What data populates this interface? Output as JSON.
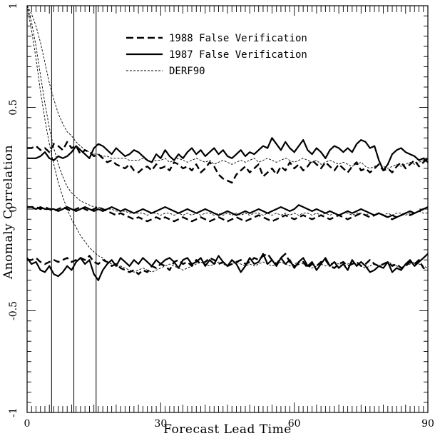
{
  "chart_data": {
    "type": "line",
    "title": "",
    "xlabel": "Forecast Lead Time",
    "ylabel": "Anomaly Correlation",
    "xlim": [
      0,
      90
    ],
    "ylim": [
      -1,
      1
    ],
    "xticks": [
      0,
      30,
      60,
      90
    ],
    "xtick_labels": [
      "0",
      "30",
      "60",
      "90"
    ],
    "yticks": [
      -1,
      -0.5,
      0,
      0.5,
      1
    ],
    "ytick_labels": [
      "-1",
      "-0.5",
      "0",
      "0.5",
      "1"
    ],
    "vertical_lines": [
      5.5,
      10.5,
      15.5
    ],
    "grid": false,
    "legend_position": "top-center",
    "legend": [
      {
        "label": "1988 False Verification",
        "style": "dashed-thick"
      },
      {
        "label": "1987 False Verification",
        "style": "solid-thick"
      },
      {
        "label": "DERF90",
        "style": "dashed-thin"
      }
    ],
    "x": [
      0,
      1,
      2,
      3,
      4,
      5,
      6,
      7,
      8,
      9,
      10,
      11,
      12,
      13,
      14,
      15,
      16,
      17,
      18,
      19,
      20,
      21,
      22,
      23,
      24,
      25,
      26,
      27,
      28,
      29,
      30,
      31,
      32,
      33,
      34,
      35,
      36,
      37,
      38,
      39,
      40,
      41,
      42,
      43,
      44,
      45,
      46,
      47,
      48,
      49,
      50,
      51,
      52,
      53,
      54,
      55,
      56,
      57,
      58,
      59,
      60,
      61,
      62,
      63,
      64,
      65,
      66,
      67,
      68,
      69,
      70,
      71,
      72,
      73,
      74,
      75,
      76,
      77,
      78,
      79,
      80,
      81,
      82,
      83,
      84,
      85,
      86,
      87,
      88,
      89,
      90
    ],
    "series": [
      {
        "name": "1988 False Verification",
        "group": "upper",
        "style": "dashed-thick",
        "values": [
          0.3,
          0.3,
          0.31,
          0.29,
          0.3,
          0.28,
          0.32,
          0.31,
          0.29,
          0.33,
          0.3,
          0.31,
          0.27,
          0.29,
          0.28,
          0.26,
          0.27,
          0.25,
          0.23,
          0.24,
          0.22,
          0.21,
          0.2,
          0.22,
          0.19,
          0.18,
          0.2,
          0.21,
          0.19,
          0.22,
          0.2,
          0.21,
          0.19,
          0.23,
          0.22,
          0.2,
          0.21,
          0.19,
          0.22,
          0.18,
          0.2,
          0.23,
          0.21,
          0.17,
          0.15,
          0.14,
          0.13,
          0.17,
          0.19,
          0.21,
          0.18,
          0.2,
          0.22,
          0.16,
          0.18,
          0.2,
          0.17,
          0.21,
          0.19,
          0.23,
          0.2,
          0.22,
          0.19,
          0.21,
          0.24,
          0.22,
          0.2,
          0.23,
          0.21,
          0.19,
          0.22,
          0.2,
          0.18,
          0.21,
          0.23,
          0.19,
          0.2,
          0.18,
          0.2,
          0.22,
          0.19,
          0.2,
          0.18,
          0.21,
          0.23,
          0.2,
          0.22,
          0.24,
          0.21,
          0.23,
          0.25
        ]
      },
      {
        "name": "1987 False Verification",
        "group": "upper",
        "style": "solid-thick",
        "values": [
          0.25,
          0.25,
          0.25,
          0.26,
          0.28,
          0.25,
          0.24,
          0.26,
          0.25,
          0.26,
          0.28,
          0.31,
          0.29,
          0.27,
          0.25,
          0.3,
          0.32,
          0.31,
          0.29,
          0.27,
          0.3,
          0.28,
          0.26,
          0.27,
          0.29,
          0.28,
          0.26,
          0.24,
          0.23,
          0.27,
          0.25,
          0.29,
          0.26,
          0.24,
          0.27,
          0.25,
          0.28,
          0.3,
          0.27,
          0.29,
          0.26,
          0.28,
          0.3,
          0.27,
          0.29,
          0.26,
          0.25,
          0.27,
          0.29,
          0.26,
          0.28,
          0.27,
          0.29,
          0.31,
          0.3,
          0.35,
          0.32,
          0.29,
          0.33,
          0.3,
          0.28,
          0.31,
          0.34,
          0.29,
          0.27,
          0.3,
          0.28,
          0.25,
          0.29,
          0.31,
          0.3,
          0.28,
          0.3,
          0.28,
          0.32,
          0.34,
          0.33,
          0.3,
          0.31,
          0.24,
          0.19,
          0.22,
          0.27,
          0.29,
          0.3,
          0.28,
          0.27,
          0.26,
          0.24,
          0.25,
          0.23
        ]
      },
      {
        "name": "DERF90",
        "group": "upper",
        "style": "dashed-thin",
        "values": [
          1.0,
          0.96,
          0.9,
          0.82,
          0.72,
          0.62,
          0.54,
          0.47,
          0.42,
          0.38,
          0.36,
          0.33,
          0.31,
          0.29,
          0.28,
          0.27,
          0.27,
          0.26,
          0.26,
          0.25,
          0.25,
          0.25,
          0.25,
          0.24,
          0.24,
          0.24,
          0.25,
          0.24,
          0.23,
          0.24,
          0.24,
          0.25,
          0.23,
          0.24,
          0.25,
          0.24,
          0.23,
          0.24,
          0.25,
          0.24,
          0.23,
          0.24,
          0.22,
          0.23,
          0.24,
          0.23,
          0.22,
          0.23,
          0.24,
          0.23,
          0.24,
          0.25,
          0.23,
          0.24,
          0.25,
          0.24,
          0.23,
          0.24,
          0.25,
          0.24,
          0.23,
          0.24,
          0.25,
          0.24,
          0.23,
          0.24,
          0.22,
          0.23,
          0.24,
          0.23,
          0.22,
          0.23,
          0.22,
          0.21,
          0.22,
          0.23,
          0.21,
          0.2,
          0.21,
          0.22,
          0.21,
          0.2,
          0.21,
          0.22,
          0.21,
          0.22,
          0.23,
          0.22,
          0.23,
          0.24,
          0.25
        ]
      },
      {
        "name": "1988 False Verification",
        "group": "middle",
        "style": "dashed-thick",
        "values": [
          0.01,
          0.01,
          0.01,
          0.0,
          0.01,
          0.0,
          -0.01,
          0.0,
          0.01,
          0.0,
          -0.01,
          0.0,
          0.01,
          0.0,
          -0.01,
          0.0,
          0.01,
          0.0,
          -0.01,
          -0.02,
          -0.03,
          -0.02,
          -0.03,
          -0.04,
          -0.05,
          -0.04,
          -0.05,
          -0.06,
          -0.05,
          -0.04,
          -0.05,
          -0.04,
          -0.05,
          -0.06,
          -0.05,
          -0.04,
          -0.05,
          -0.06,
          -0.05,
          -0.04,
          -0.05,
          -0.06,
          -0.05,
          -0.04,
          -0.05,
          -0.06,
          -0.05,
          -0.04,
          -0.05,
          -0.06,
          -0.05,
          -0.04,
          -0.03,
          -0.04,
          -0.05,
          -0.06,
          -0.05,
          -0.04,
          -0.03,
          -0.04,
          -0.05,
          -0.04,
          -0.03,
          -0.04,
          -0.05,
          -0.04,
          -0.03,
          -0.04,
          -0.05,
          -0.04,
          -0.03,
          -0.04,
          -0.05,
          -0.04,
          -0.03,
          -0.02,
          -0.03,
          -0.04,
          -0.03,
          -0.02,
          -0.03,
          -0.04,
          -0.05,
          -0.04,
          -0.03,
          -0.02,
          -0.03,
          -0.02,
          -0.01,
          0.0,
          0.0
        ]
      },
      {
        "name": "1987 False Verification",
        "group": "middle",
        "style": "solid-thick",
        "values": [
          0.01,
          0.01,
          0.0,
          0.01,
          0.0,
          0.0,
          0.0,
          -0.01,
          0.0,
          0.01,
          0.0,
          -0.01,
          0.0,
          0.01,
          0.0,
          -0.01,
          0.0,
          -0.01,
          0.0,
          0.01,
          0.0,
          -0.01,
          0.0,
          -0.01,
          -0.02,
          -0.01,
          0.0,
          -0.01,
          -0.02,
          -0.01,
          0.0,
          0.01,
          0.0,
          -0.01,
          -0.02,
          -0.01,
          0.0,
          -0.01,
          -0.02,
          -0.01,
          0.0,
          -0.01,
          -0.02,
          -0.03,
          -0.02,
          -0.01,
          -0.02,
          -0.03,
          -0.02,
          -0.01,
          -0.02,
          -0.01,
          0.0,
          -0.01,
          -0.02,
          -0.01,
          0.0,
          0.01,
          0.0,
          -0.01,
          0.0,
          0.02,
          0.01,
          0.0,
          -0.01,
          0.0,
          -0.01,
          -0.02,
          -0.01,
          -0.02,
          -0.03,
          -0.02,
          -0.01,
          -0.02,
          -0.01,
          0.0,
          -0.01,
          -0.02,
          -0.03,
          -0.02,
          -0.03,
          -0.04,
          -0.03,
          -0.04,
          -0.03,
          -0.02,
          -0.01,
          -0.02,
          -0.01,
          0.0,
          0.01
        ]
      },
      {
        "name": "DERF90",
        "group": "middle",
        "style": "dashed-thin",
        "values": [
          1.0,
          0.92,
          0.8,
          0.66,
          0.52,
          0.4,
          0.3,
          0.22,
          0.16,
          0.11,
          0.08,
          0.06,
          0.04,
          0.03,
          0.02,
          0.01,
          0.01,
          0.0,
          0.0,
          0.0,
          -0.01,
          -0.01,
          -0.01,
          -0.02,
          -0.02,
          -0.02,
          -0.02,
          -0.03,
          -0.02,
          -0.02,
          -0.03,
          -0.02,
          -0.02,
          -0.03,
          -0.02,
          -0.03,
          -0.02,
          -0.03,
          -0.02,
          -0.03,
          -0.02,
          -0.02,
          -0.03,
          -0.02,
          -0.03,
          -0.02,
          -0.03,
          -0.02,
          -0.03,
          -0.02,
          -0.03,
          -0.02,
          -0.02,
          -0.03,
          -0.02,
          -0.03,
          -0.02,
          -0.03,
          -0.02,
          -0.03,
          -0.02,
          -0.03,
          -0.02,
          -0.02,
          -0.03,
          -0.02,
          -0.03,
          -0.02,
          -0.03,
          -0.02,
          -0.03,
          -0.02,
          -0.02,
          -0.03,
          -0.02,
          -0.02,
          -0.03,
          -0.02,
          -0.03,
          -0.02,
          -0.03,
          -0.02,
          -0.03,
          -0.02,
          -0.02,
          -0.03,
          -0.02,
          -0.02,
          -0.01,
          -0.02,
          -0.02
        ]
      },
      {
        "name": "1988 False Verification",
        "group": "lower",
        "style": "dashed-thick",
        "values": [
          -0.25,
          -0.25,
          -0.24,
          -0.26,
          -0.27,
          -0.26,
          -0.25,
          -0.26,
          -0.25,
          -0.24,
          -0.26,
          -0.25,
          -0.24,
          -0.25,
          -0.23,
          -0.26,
          -0.27,
          -0.25,
          -0.26,
          -0.28,
          -0.27,
          -0.29,
          -0.3,
          -0.31,
          -0.3,
          -0.32,
          -0.3,
          -0.31,
          -0.28,
          -0.29,
          -0.27,
          -0.28,
          -0.3,
          -0.26,
          -0.25,
          -0.27,
          -0.26,
          -0.28,
          -0.25,
          -0.27,
          -0.26,
          -0.24,
          -0.25,
          -0.27,
          -0.26,
          -0.28,
          -0.27,
          -0.26,
          -0.25,
          -0.27,
          -0.26,
          -0.24,
          -0.25,
          -0.23,
          -0.22,
          -0.25,
          -0.27,
          -0.24,
          -0.22,
          -0.26,
          -0.28,
          -0.27,
          -0.26,
          -0.29,
          -0.27,
          -0.28,
          -0.26,
          -0.25,
          -0.28,
          -0.29,
          -0.27,
          -0.26,
          -0.28,
          -0.27,
          -0.26,
          -0.28,
          -0.27,
          -0.25,
          -0.27,
          -0.28,
          -0.27,
          -0.26,
          -0.28,
          -0.27,
          -0.29,
          -0.28,
          -0.26,
          -0.27,
          -0.25,
          -0.29,
          -0.3
        ]
      },
      {
        "name": "1987 False Verification",
        "group": "lower",
        "style": "solid-thick",
        "values": [
          -0.24,
          -0.27,
          -0.26,
          -0.3,
          -0.31,
          -0.28,
          -0.32,
          -0.33,
          -0.31,
          -0.28,
          -0.3,
          -0.26,
          -0.24,
          -0.27,
          -0.25,
          -0.32,
          -0.35,
          -0.3,
          -0.27,
          -0.25,
          -0.28,
          -0.24,
          -0.26,
          -0.28,
          -0.25,
          -0.27,
          -0.24,
          -0.26,
          -0.28,
          -0.25,
          -0.27,
          -0.25,
          -0.24,
          -0.26,
          -0.29,
          -0.25,
          -0.24,
          -0.27,
          -0.26,
          -0.24,
          -0.28,
          -0.25,
          -0.27,
          -0.23,
          -0.26,
          -0.28,
          -0.25,
          -0.27,
          -0.31,
          -0.28,
          -0.24,
          -0.27,
          -0.26,
          -0.22,
          -0.27,
          -0.25,
          -0.28,
          -0.24,
          -0.27,
          -0.25,
          -0.29,
          -0.26,
          -0.24,
          -0.28,
          -0.26,
          -0.3,
          -0.27,
          -0.24,
          -0.28,
          -0.26,
          -0.29,
          -0.27,
          -0.3,
          -0.25,
          -0.28,
          -0.26,
          -0.28,
          -0.31,
          -0.3,
          -0.28,
          -0.29,
          -0.26,
          -0.31,
          -0.29,
          -0.3,
          -0.27,
          -0.25,
          -0.28,
          -0.26,
          -0.24,
          -0.22
        ]
      },
      {
        "name": "DERF90",
        "group": "lower",
        "style": "dashed-thin",
        "values": [
          1.0,
          0.88,
          0.74,
          0.58,
          0.44,
          0.32,
          0.22,
          0.13,
          0.06,
          0.0,
          -0.05,
          -0.09,
          -0.13,
          -0.16,
          -0.19,
          -0.21,
          -0.23,
          -0.24,
          -0.26,
          -0.27,
          -0.28,
          -0.28,
          -0.29,
          -0.3,
          -0.31,
          -0.3,
          -0.29,
          -0.3,
          -0.31,
          -0.3,
          -0.29,
          -0.28,
          -0.27,
          -0.28,
          -0.29,
          -0.3,
          -0.29,
          -0.28,
          -0.27,
          -0.26,
          -0.27,
          -0.28,
          -0.27,
          -0.26,
          -0.27,
          -0.28,
          -0.27,
          -0.26,
          -0.27,
          -0.28,
          -0.27,
          -0.28,
          -0.27,
          -0.26,
          -0.27,
          -0.28,
          -0.27,
          -0.26,
          -0.27,
          -0.28,
          -0.27,
          -0.26,
          -0.27,
          -0.28,
          -0.29,
          -0.28,
          -0.27,
          -0.28,
          -0.27,
          -0.26,
          -0.27,
          -0.28,
          -0.27,
          -0.26,
          -0.27,
          -0.28,
          -0.29,
          -0.28,
          -0.27,
          -0.28,
          -0.27,
          -0.26,
          -0.27,
          -0.28,
          -0.29,
          -0.28,
          -0.27,
          -0.26,
          -0.27,
          -0.28,
          -0.29
        ]
      }
    ]
  }
}
